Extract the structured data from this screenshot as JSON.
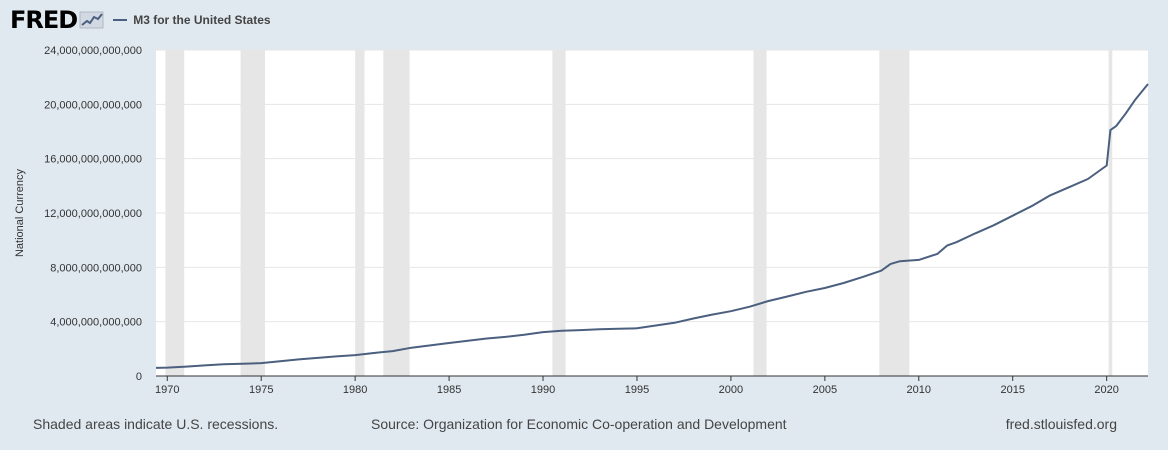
{
  "header": {
    "logo_text": "FRED",
    "series_label": "M3 for the United States"
  },
  "footer": {
    "recession_note": "Shaded areas indicate U.S. recessions.",
    "source": "Source: Organization for Economic Co-operation and Development",
    "site": "fred.stlouisfed.org"
  },
  "colors": {
    "background": "#e1e9f0",
    "plot_background": "#ffffff",
    "line": "#4b5f7f",
    "recession_shade": "#e6e6e6",
    "gridline": "#e6e6e6"
  },
  "icons": [
    "fred-logo-chart-icon",
    "legend-line-swatch"
  ],
  "chart_data": {
    "type": "line",
    "title": "",
    "xlabel": "",
    "ylabel": "National Currency",
    "xlim": [
      1969.4,
      2022.2
    ],
    "ylim": [
      0,
      24000000000000
    ],
    "yticks": [
      0,
      4000000000000,
      8000000000000,
      12000000000000,
      16000000000000,
      20000000000000,
      24000000000000
    ],
    "ytick_labels": [
      "0",
      "4,000,000,000,000",
      "8,000,000,000,000",
      "12,000,000,000,000",
      "16,000,000,000,000",
      "20,000,000,000,000",
      "24,000,000,000,000"
    ],
    "xticks": [
      1970,
      1975,
      1980,
      1985,
      1990,
      1995,
      2000,
      2005,
      2010,
      2015,
      2020
    ],
    "xtick_labels": [
      "1970",
      "1975",
      "1980",
      "1985",
      "1990",
      "1995",
      "2000",
      "2005",
      "2010",
      "2015",
      "2020"
    ],
    "grid": true,
    "recessions": [
      [
        1969.9,
        1970.9
      ],
      [
        1973.9,
        1975.2
      ],
      [
        1980.0,
        1980.5
      ],
      [
        1981.5,
        1982.9
      ],
      [
        1990.5,
        1991.2
      ],
      [
        2001.2,
        2001.9
      ],
      [
        2007.9,
        2009.5
      ],
      [
        2020.1,
        2020.3
      ]
    ],
    "series": [
      {
        "name": "M3 for the United States",
        "x": [
          1969.4,
          1970,
          1971,
          1972,
          1973,
          1974,
          1975,
          1976,
          1977,
          1978,
          1979,
          1980,
          1981,
          1982,
          1983,
          1984,
          1985,
          1986,
          1987,
          1988,
          1989,
          1990,
          1991,
          1992,
          1993,
          1994,
          1995,
          1996,
          1997,
          1998,
          1999,
          2000,
          2001,
          2002,
          2003,
          2004,
          2005,
          2006,
          2007,
          2008,
          2008.5,
          2009,
          2010,
          2011,
          2011.5,
          2012,
          2013,
          2014,
          2015,
          2016,
          2017,
          2018,
          2019,
          2020.0,
          2020.2,
          2020.5,
          2021,
          2021.5,
          2022.2
        ],
        "y": [
          600000000000,
          620000000000,
          690000000000,
          780000000000,
          860000000000,
          900000000000,
          950000000000,
          1080000000000,
          1220000000000,
          1330000000000,
          1440000000000,
          1540000000000,
          1690000000000,
          1830000000000,
          2080000000000,
          2250000000000,
          2430000000000,
          2600000000000,
          2760000000000,
          2880000000000,
          3030000000000,
          3230000000000,
          3330000000000,
          3380000000000,
          3440000000000,
          3480000000000,
          3510000000000,
          3720000000000,
          3920000000000,
          4230000000000,
          4520000000000,
          4770000000000,
          5100000000000,
          5520000000000,
          5850000000000,
          6200000000000,
          6480000000000,
          6850000000000,
          7280000000000,
          7750000000000,
          8250000000000,
          8450000000000,
          8550000000000,
          9000000000000,
          9600000000000,
          9850000000000,
          10500000000000,
          11100000000000,
          11800000000000,
          12500000000000,
          13300000000000,
          13900000000000,
          14500000000000,
          15500000000000,
          18100000000000,
          18400000000000,
          19300000000000,
          20300000000000,
          21500000000000
        ]
      }
    ]
  }
}
